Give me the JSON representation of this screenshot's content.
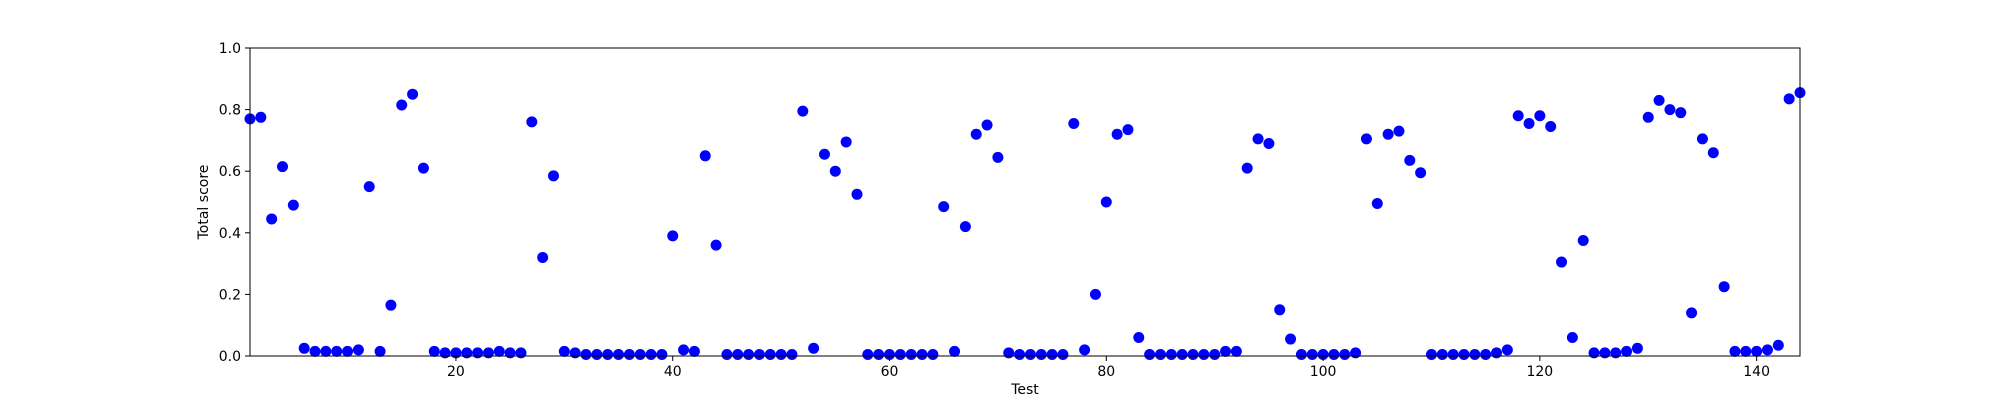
{
  "chart_data": {
    "type": "scatter",
    "title": "",
    "xlabel": "Test",
    "ylabel": "Total score",
    "xlim": [
      1,
      144
    ],
    "ylim": [
      0,
      1
    ],
    "xticks": [
      20,
      40,
      60,
      80,
      100,
      120,
      140
    ],
    "xtick_labels": [
      "20",
      "40",
      "60",
      "80",
      "100",
      "120",
      "140"
    ],
    "yticks": [
      0,
      0.2,
      0.4,
      0.6,
      0.8,
      1.0
    ],
    "ytick_labels": [
      "0.0",
      "0.2",
      "0.4",
      "0.6",
      "0.8",
      "1.0"
    ],
    "grid": false,
    "marker_color": "#0000ff",
    "series": [
      {
        "x": [
          1,
          2,
          3,
          4,
          5,
          6,
          7,
          8,
          9,
          10,
          11,
          12,
          13,
          14,
          15,
          16,
          17,
          18,
          19,
          20,
          21,
          22,
          23,
          24,
          25,
          26,
          27,
          28,
          29,
          30,
          31,
          32,
          33,
          34,
          35,
          36,
          37,
          38,
          39,
          40,
          41,
          42,
          43,
          44,
          45,
          46,
          47,
          48,
          49,
          50,
          51,
          52,
          53,
          54,
          55,
          56,
          57,
          58,
          59,
          60,
          61,
          62,
          63,
          64,
          65,
          66,
          67,
          68,
          69,
          70,
          71,
          72,
          73,
          74,
          75,
          76,
          77,
          78,
          79,
          80,
          81,
          82,
          83,
          84,
          85,
          86,
          87,
          88,
          89,
          90,
          91,
          92,
          93,
          94,
          95,
          96,
          97,
          98,
          99,
          100,
          101,
          102,
          103,
          104,
          105,
          106,
          107,
          108,
          109,
          110,
          111,
          112,
          113,
          114,
          115,
          116,
          117,
          118,
          119,
          120,
          121,
          122,
          123,
          124,
          125,
          126,
          127,
          128,
          129,
          130,
          131,
          132,
          133,
          134,
          135,
          136,
          137,
          138,
          139,
          140,
          141,
          142,
          143,
          144
        ],
        "y": [
          0.77,
          0.775,
          0.445,
          0.615,
          0.49,
          0.025,
          0.015,
          0.015,
          0.015,
          0.015,
          0.02,
          0.55,
          0.015,
          0.165,
          0.815,
          0.85,
          0.61,
          0.015,
          0.01,
          0.01,
          0.01,
          0.01,
          0.01,
          0.015,
          0.01,
          0.01,
          0.76,
          0.32,
          0.585,
          0.015,
          0.01,
          0.005,
          0.005,
          0.005,
          0.005,
          0.005,
          0.005,
          0.005,
          0.005,
          0.39,
          0.02,
          0.015,
          0.65,
          0.36,
          0.005,
          0.005,
          0.005,
          0.005,
          0.005,
          0.005,
          0.005,
          0.795,
          0.025,
          0.655,
          0.6,
          0.695,
          0.525,
          0.005,
          0.005,
          0.005,
          0.005,
          0.005,
          0.005,
          0.005,
          0.485,
          0.015,
          0.42,
          0.72,
          0.75,
          0.645,
          0.01,
          0.005,
          0.005,
          0.005,
          0.005,
          0.005,
          0.755,
          0.02,
          0.2,
          0.5,
          0.72,
          0.735,
          0.06,
          0.005,
          0.005,
          0.005,
          0.005,
          0.005,
          0.005,
          0.005,
          0.015,
          0.015,
          0.61,
          0.705,
          0.69,
          0.15,
          0.055,
          0.005,
          0.005,
          0.005,
          0.005,
          0.005,
          0.01,
          0.705,
          0.495,
          0.72,
          0.73,
          0.635,
          0.595,
          0.005,
          0.005,
          0.005,
          0.005,
          0.005,
          0.005,
          0.01,
          0.02,
          0.78,
          0.755,
          0.78,
          0.745,
          0.305,
          0.06,
          0.375,
          0.01,
          0.01,
          0.01,
          0.015,
          0.025,
          0.775,
          0.83,
          0.8,
          0.79,
          0.14,
          0.705,
          0.66,
          0.225,
          0.015,
          0.015,
          0.015,
          0.02,
          0.035,
          0.835,
          0.855
        ]
      }
    ]
  }
}
